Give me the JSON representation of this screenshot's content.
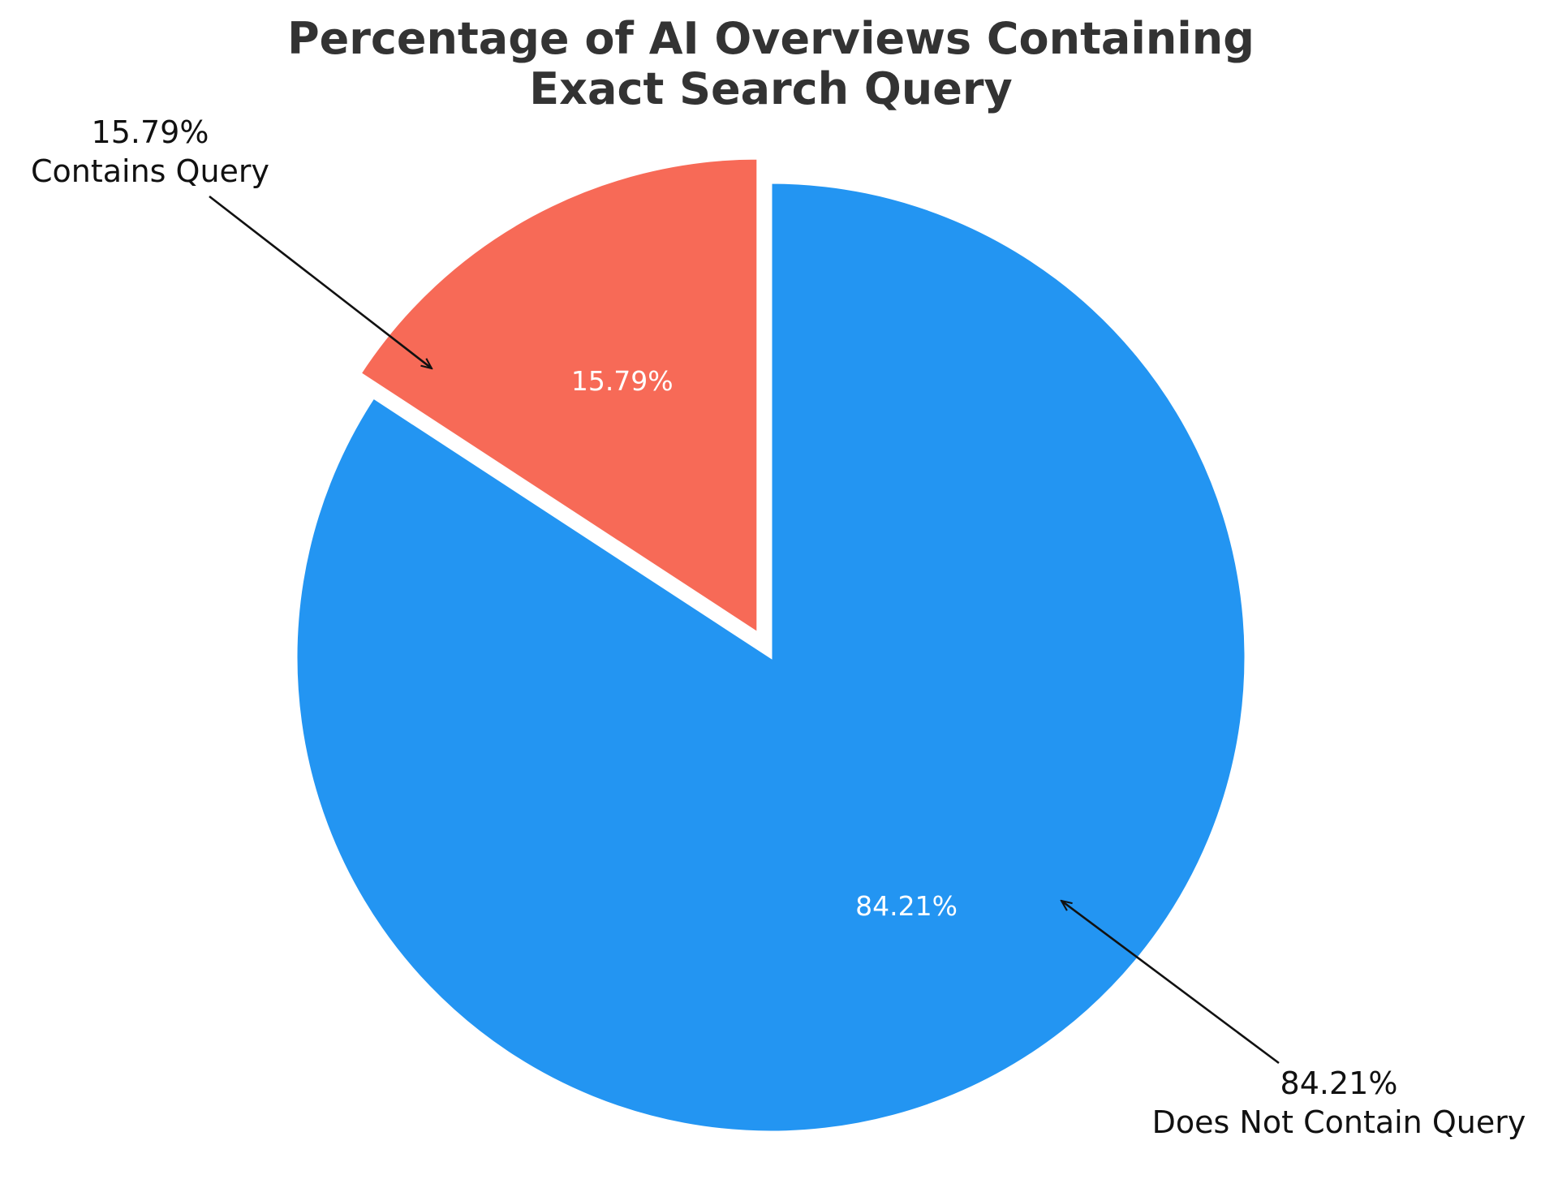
{
  "chart_data": {
    "type": "pie",
    "title_lines": [
      "Percentage of AI Overviews Containing",
      "Exact Search Query"
    ],
    "slices": [
      {
        "label": "Contains Query",
        "value": 15.79,
        "value_label": "15.79%",
        "color": "#f76a57",
        "exploded": true
      },
      {
        "label": "Does Not Contain Query",
        "value": 84.21,
        "value_label": "84.21%",
        "color": "#2395f2",
        "exploded": false
      }
    ],
    "start_angle": "top (12 o'clock), counter-clockwise",
    "legend": "none",
    "callouts": "annotation arrows with percentage and label"
  }
}
